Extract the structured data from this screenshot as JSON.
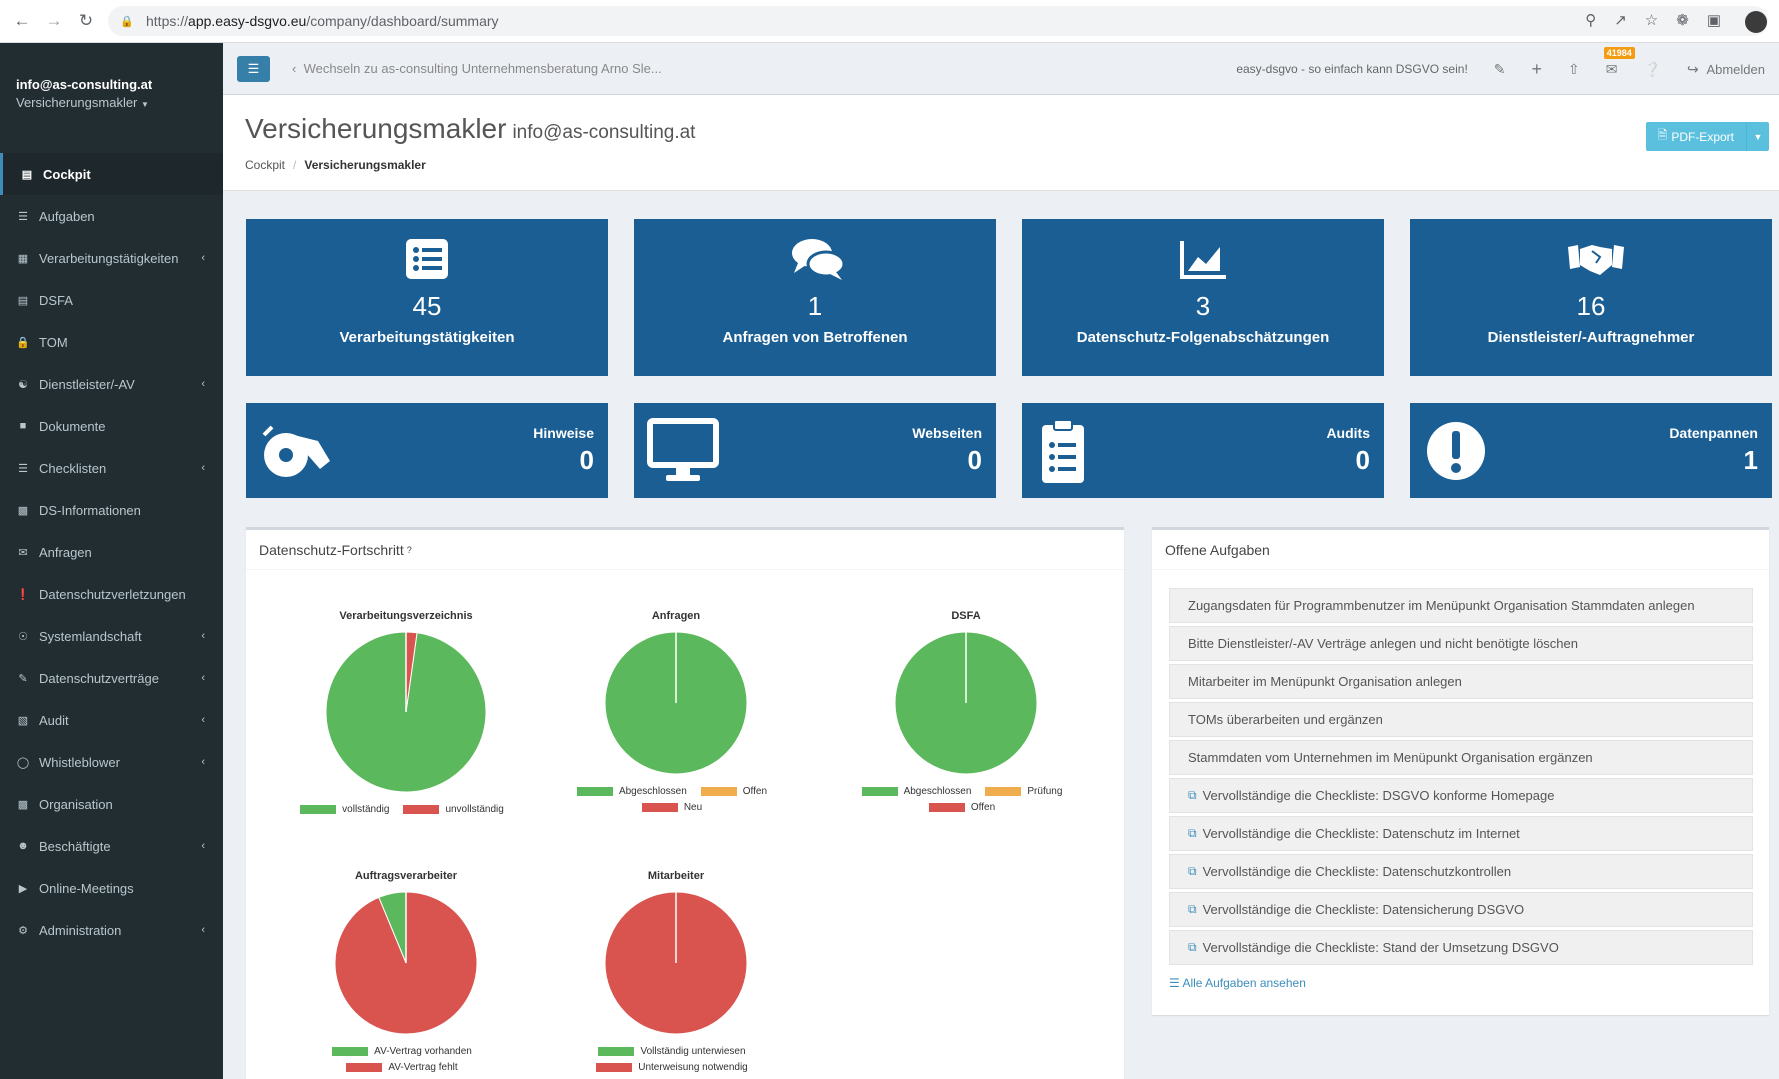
{
  "browser": {
    "url_scheme": "https://",
    "url_host": "app.easy-dsgvo.eu",
    "url_path": "/company/dashboard/summary"
  },
  "sidebar": {
    "user_email": "info@as-consulting.at",
    "user_role": "Versicherungsmakler",
    "items": [
      {
        "label": "Cockpit",
        "icon": "chart-icon",
        "arrow": false,
        "active": true
      },
      {
        "label": "Aufgaben",
        "icon": "list-icon",
        "arrow": false
      },
      {
        "label": "Verarbeitungstätigkeiten",
        "icon": "table-icon",
        "arrow": true
      },
      {
        "label": "DSFA",
        "icon": "chart-icon",
        "arrow": false
      },
      {
        "label": "TOM",
        "icon": "lock-icon",
        "arrow": false
      },
      {
        "label": "Dienstleister/-AV",
        "icon": "handshake-icon",
        "arrow": true
      },
      {
        "label": "Dokumente",
        "icon": "folder-icon",
        "arrow": false
      },
      {
        "label": "Checklisten",
        "icon": "list-icon",
        "arrow": true
      },
      {
        "label": "DS-Informationen",
        "icon": "info-card-icon",
        "arrow": false
      },
      {
        "label": "Anfragen",
        "icon": "comments-icon",
        "arrow": false
      },
      {
        "label": "Datenschutzverletzungen",
        "icon": "exclamation-icon",
        "arrow": false
      },
      {
        "label": "Systemlandschaft",
        "icon": "network-icon",
        "arrow": true
      },
      {
        "label": "Datenschutzverträge",
        "icon": "contract-icon",
        "arrow": true
      },
      {
        "label": "Audit",
        "icon": "clipboard-icon",
        "arrow": true
      },
      {
        "label": "Whistleblower",
        "icon": "whistle-icon",
        "arrow": true
      },
      {
        "label": "Organisation",
        "icon": "building-icon",
        "arrow": false
      },
      {
        "label": "Beschäftigte",
        "icon": "users-icon",
        "arrow": true
      },
      {
        "label": "Online-Meetings",
        "icon": "video-icon",
        "arrow": false
      },
      {
        "label": "Administration",
        "icon": "cogs-icon",
        "arrow": true
      }
    ]
  },
  "topbar": {
    "switch_text": "Wechseln zu as-consulting Unternehmensberatung Arno Sle...",
    "slogan": "easy-dsgvo - so einfach kann DSGVO sein!",
    "badge": "41984",
    "logout": "Abmelden"
  },
  "header": {
    "title": "Versicherungsmakler",
    "subtitle": "info@as-consulting.at",
    "breadcrumb_home": "Cockpit",
    "breadcrumb_current": "Versicherungsmakler",
    "pdf_label": "PDF-Export"
  },
  "tiles_big": [
    {
      "num": "45",
      "label": "Verarbeitungstätigkeiten",
      "icon": "list-icon"
    },
    {
      "num": "1",
      "label": "Anfragen von Betroffenen",
      "icon": "comments-icon"
    },
    {
      "num": "3",
      "label": "Datenschutz-Folgenabschätzungen",
      "icon": "area-chart-icon"
    },
    {
      "num": "16",
      "label": "Dienstleister/-Auftragnehmer",
      "icon": "handshake-icon"
    }
  ],
  "tiles_small": [
    {
      "label": "Hinweise",
      "num": "0",
      "icon": "whistle-icon"
    },
    {
      "label": "Webseiten",
      "num": "0",
      "icon": "monitor-icon"
    },
    {
      "label": "Audits",
      "num": "0",
      "icon": "clipboard-icon"
    },
    {
      "label": "Datenpannen",
      "num": "1",
      "icon": "exclamation-icon"
    }
  ],
  "progress_panel": {
    "title": "Datenschutz-Fortschritt",
    "help": "?"
  },
  "chart_data": [
    {
      "type": "pie",
      "title": "Verarbeitungsverzeichnis",
      "labels": [
        "vollständig",
        "unvollständig"
      ],
      "values": [
        97.8,
        2.2
      ],
      "colors": [
        "#5cb85c",
        "#d9534f"
      ]
    },
    {
      "type": "pie",
      "title": "Anfragen",
      "labels": [
        "Abgeschlossen",
        "Offen",
        "Neu"
      ],
      "values": [
        100,
        0,
        0
      ],
      "colors": [
        "#5cb85c",
        "#f0ad4e",
        "#d9534f"
      ]
    },
    {
      "type": "pie",
      "title": "DSFA",
      "labels": [
        "Abgeschlossen",
        "Prüfung",
        "Offen"
      ],
      "values": [
        100,
        0,
        0
      ],
      "colors": [
        "#5cb85c",
        "#f0ad4e",
        "#d9534f"
      ]
    },
    {
      "type": "pie",
      "title": "Auftragsverarbeiter",
      "labels": [
        "AV-Vertrag vorhanden",
        "AV-Vertrag fehlt"
      ],
      "values": [
        6.25,
        93.75
      ],
      "colors": [
        "#5cb85c",
        "#d9534f"
      ]
    },
    {
      "type": "pie",
      "title": "Mitarbeiter",
      "labels": [
        "Vollständig unterwiesen",
        "Unterweisung notwendig"
      ],
      "values": [
        0,
        100
      ],
      "colors": [
        "#5cb85c",
        "#d9534f"
      ]
    }
  ],
  "tasks_panel": {
    "title": "Offene Aufgaben",
    "items": [
      {
        "text": "Zugangsdaten für Programmbenutzer im Menüpunkt Organisation Stammdaten anlegen",
        "external": false
      },
      {
        "text": "Bitte Dienstleister/-AV Verträge anlegen und nicht benötigte löschen",
        "external": false
      },
      {
        "text": "Mitarbeiter im Menüpunkt Organisation anlegen",
        "external": false
      },
      {
        "text": "TOMs überarbeiten und ergänzen",
        "external": false
      },
      {
        "text": "Stammdaten vom Unternehmen im Menüpunkt Organisation ergänzen",
        "external": false
      },
      {
        "text": "Vervollständige die Checkliste: DSGVO konforme Homepage",
        "external": true
      },
      {
        "text": "Vervollständige die Checkliste: Datenschutz im Internet",
        "external": true
      },
      {
        "text": "Vervollständige die Checkliste: Datenschutzkontrollen",
        "external": true
      },
      {
        "text": "Vervollständige die Checkliste: Datensicherung DSGVO",
        "external": true
      },
      {
        "text": "Vervollständige die Checkliste: Stand der Umsetzung DSGVO",
        "external": true
      }
    ],
    "all_link": "Alle Aufgaben ansehen"
  },
  "colors": {
    "sidebar_bg": "#222d32",
    "tile_bg": "#1a5e93",
    "accent": "#3c8dbc",
    "pdf_btn": "#5bc0de"
  }
}
